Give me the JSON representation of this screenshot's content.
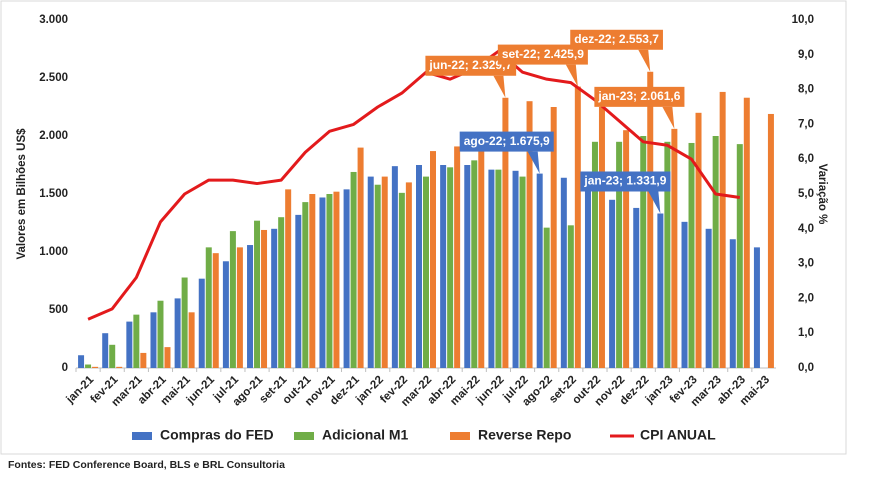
{
  "chart_data": {
    "type": "bar",
    "y_label": "Valores em Bilhões US$",
    "y2_label": "Variação %",
    "source": "Fontes: FED Conference Board, BLS e BRL Consultoria",
    "categories": [
      "jan-21",
      "fev-21",
      "mar-21",
      "abr-21",
      "mai-21",
      "jun-21",
      "jul-21",
      "ago-21",
      "set-21",
      "out-21",
      "nov-21",
      "dez-21",
      "jan-22",
      "fev-22",
      "mar-22",
      "abr-22",
      "mai-22",
      "jun-22",
      "jul-22",
      "ago-22",
      "set-22",
      "out-22",
      "nov-22",
      "dez-22",
      "jan-23",
      "fev-23",
      "mar-23",
      "abr-23",
      "mai-23"
    ],
    "series": [
      {
        "name": "Compras do FED",
        "color": "#4472c4",
        "type": "bar",
        "values": [
          110,
          300,
          400,
          480,
          600,
          770,
          920,
          1060,
          1200,
          1320,
          1470,
          1540,
          1650,
          1740,
          1750,
          1750,
          1750,
          1710,
          1700,
          1675.9,
          1640,
          1560,
          1450,
          1380,
          1331.9,
          1260,
          1200,
          1110,
          1040
        ],
        "value_labels": [
          null,
          null,
          null,
          null,
          null,
          null,
          null,
          null,
          null,
          null,
          null,
          null,
          null,
          null,
          null,
          null,
          null,
          null,
          null,
          "ago-22; 1.675,9",
          null,
          null,
          null,
          null,
          "jan-23; 1.331,9",
          null,
          null,
          null,
          null
        ]
      },
      {
        "name": "Adicional M1",
        "color": "#70ad47",
        "type": "bar",
        "values": [
          30,
          200,
          460,
          580,
          780,
          1040,
          1180,
          1270,
          1300,
          1430,
          1500,
          1690,
          1580,
          1510,
          1650,
          1730,
          1790,
          1710,
          1650,
          1210,
          1230,
          1950,
          1950,
          2000,
          1950,
          1940,
          2000,
          1930,
          null
        ]
      },
      {
        "name": "Reverse Repo",
        "color": "#ed7d31",
        "type": "bar",
        "values": [
          10,
          10,
          130,
          180,
          480,
          990,
          1040,
          1190,
          1540,
          1500,
          1520,
          1900,
          1650,
          1600,
          1870,
          1910,
          1980,
          2329.7,
          2300,
          2250,
          2425.9,
          2250,
          2050,
          2553.7,
          2061.6,
          2200,
          2380,
          2330,
          2190
        ],
        "value_labels": [
          null,
          null,
          null,
          null,
          null,
          null,
          null,
          null,
          null,
          null,
          null,
          null,
          null,
          null,
          null,
          null,
          null,
          "jun-22; 2.329,7",
          null,
          null,
          "set-22; 2.425,9",
          null,
          null,
          "dez-22; 2.553,7",
          "jan-23; 2.061,6",
          null,
          null,
          null,
          null
        ]
      },
      {
        "name": "CPI ANUAL",
        "color": "#e31a1c",
        "type": "line",
        "axis": "y2",
        "values": [
          1.4,
          1.7,
          2.6,
          4.2,
          5.0,
          5.4,
          5.4,
          5.3,
          5.4,
          6.2,
          6.8,
          7.0,
          7.5,
          7.9,
          8.5,
          8.3,
          8.6,
          9.1,
          8.5,
          8.3,
          8.2,
          7.7,
          7.1,
          6.5,
          6.4,
          6.0,
          5.0,
          4.9,
          null
        ]
      }
    ],
    "ylim": [
      0,
      3000
    ],
    "yticks": [
      0,
      500,
      {
        "value": 1000,
        "label": "1.000"
      },
      {
        "value": 1500,
        "label": "1.500"
      },
      {
        "value": 2000,
        "label": "2.000"
      },
      {
        "value": 2500,
        "label": "2.500"
      },
      {
        "value": 3000,
        "label": "3.000"
      }
    ],
    "y2lim": [
      0,
      10
    ],
    "y2ticks": [
      {
        "value": 0,
        "label": "0,0"
      },
      {
        "value": 1,
        "label": "1,0"
      },
      {
        "value": 2,
        "label": "2,0"
      },
      {
        "value": 3,
        "label": "3,0"
      },
      {
        "value": 4,
        "label": "4,0"
      },
      {
        "value": 5,
        "label": "5,0"
      },
      {
        "value": 6,
        "label": "6,0"
      },
      {
        "value": 7,
        "label": "7,0"
      },
      {
        "value": 8,
        "label": "8,0"
      },
      {
        "value": 9,
        "label": "9,0"
      },
      {
        "value": 10,
        "label": "10,0"
      }
    ],
    "grid": false,
    "legend": "bottom"
  }
}
